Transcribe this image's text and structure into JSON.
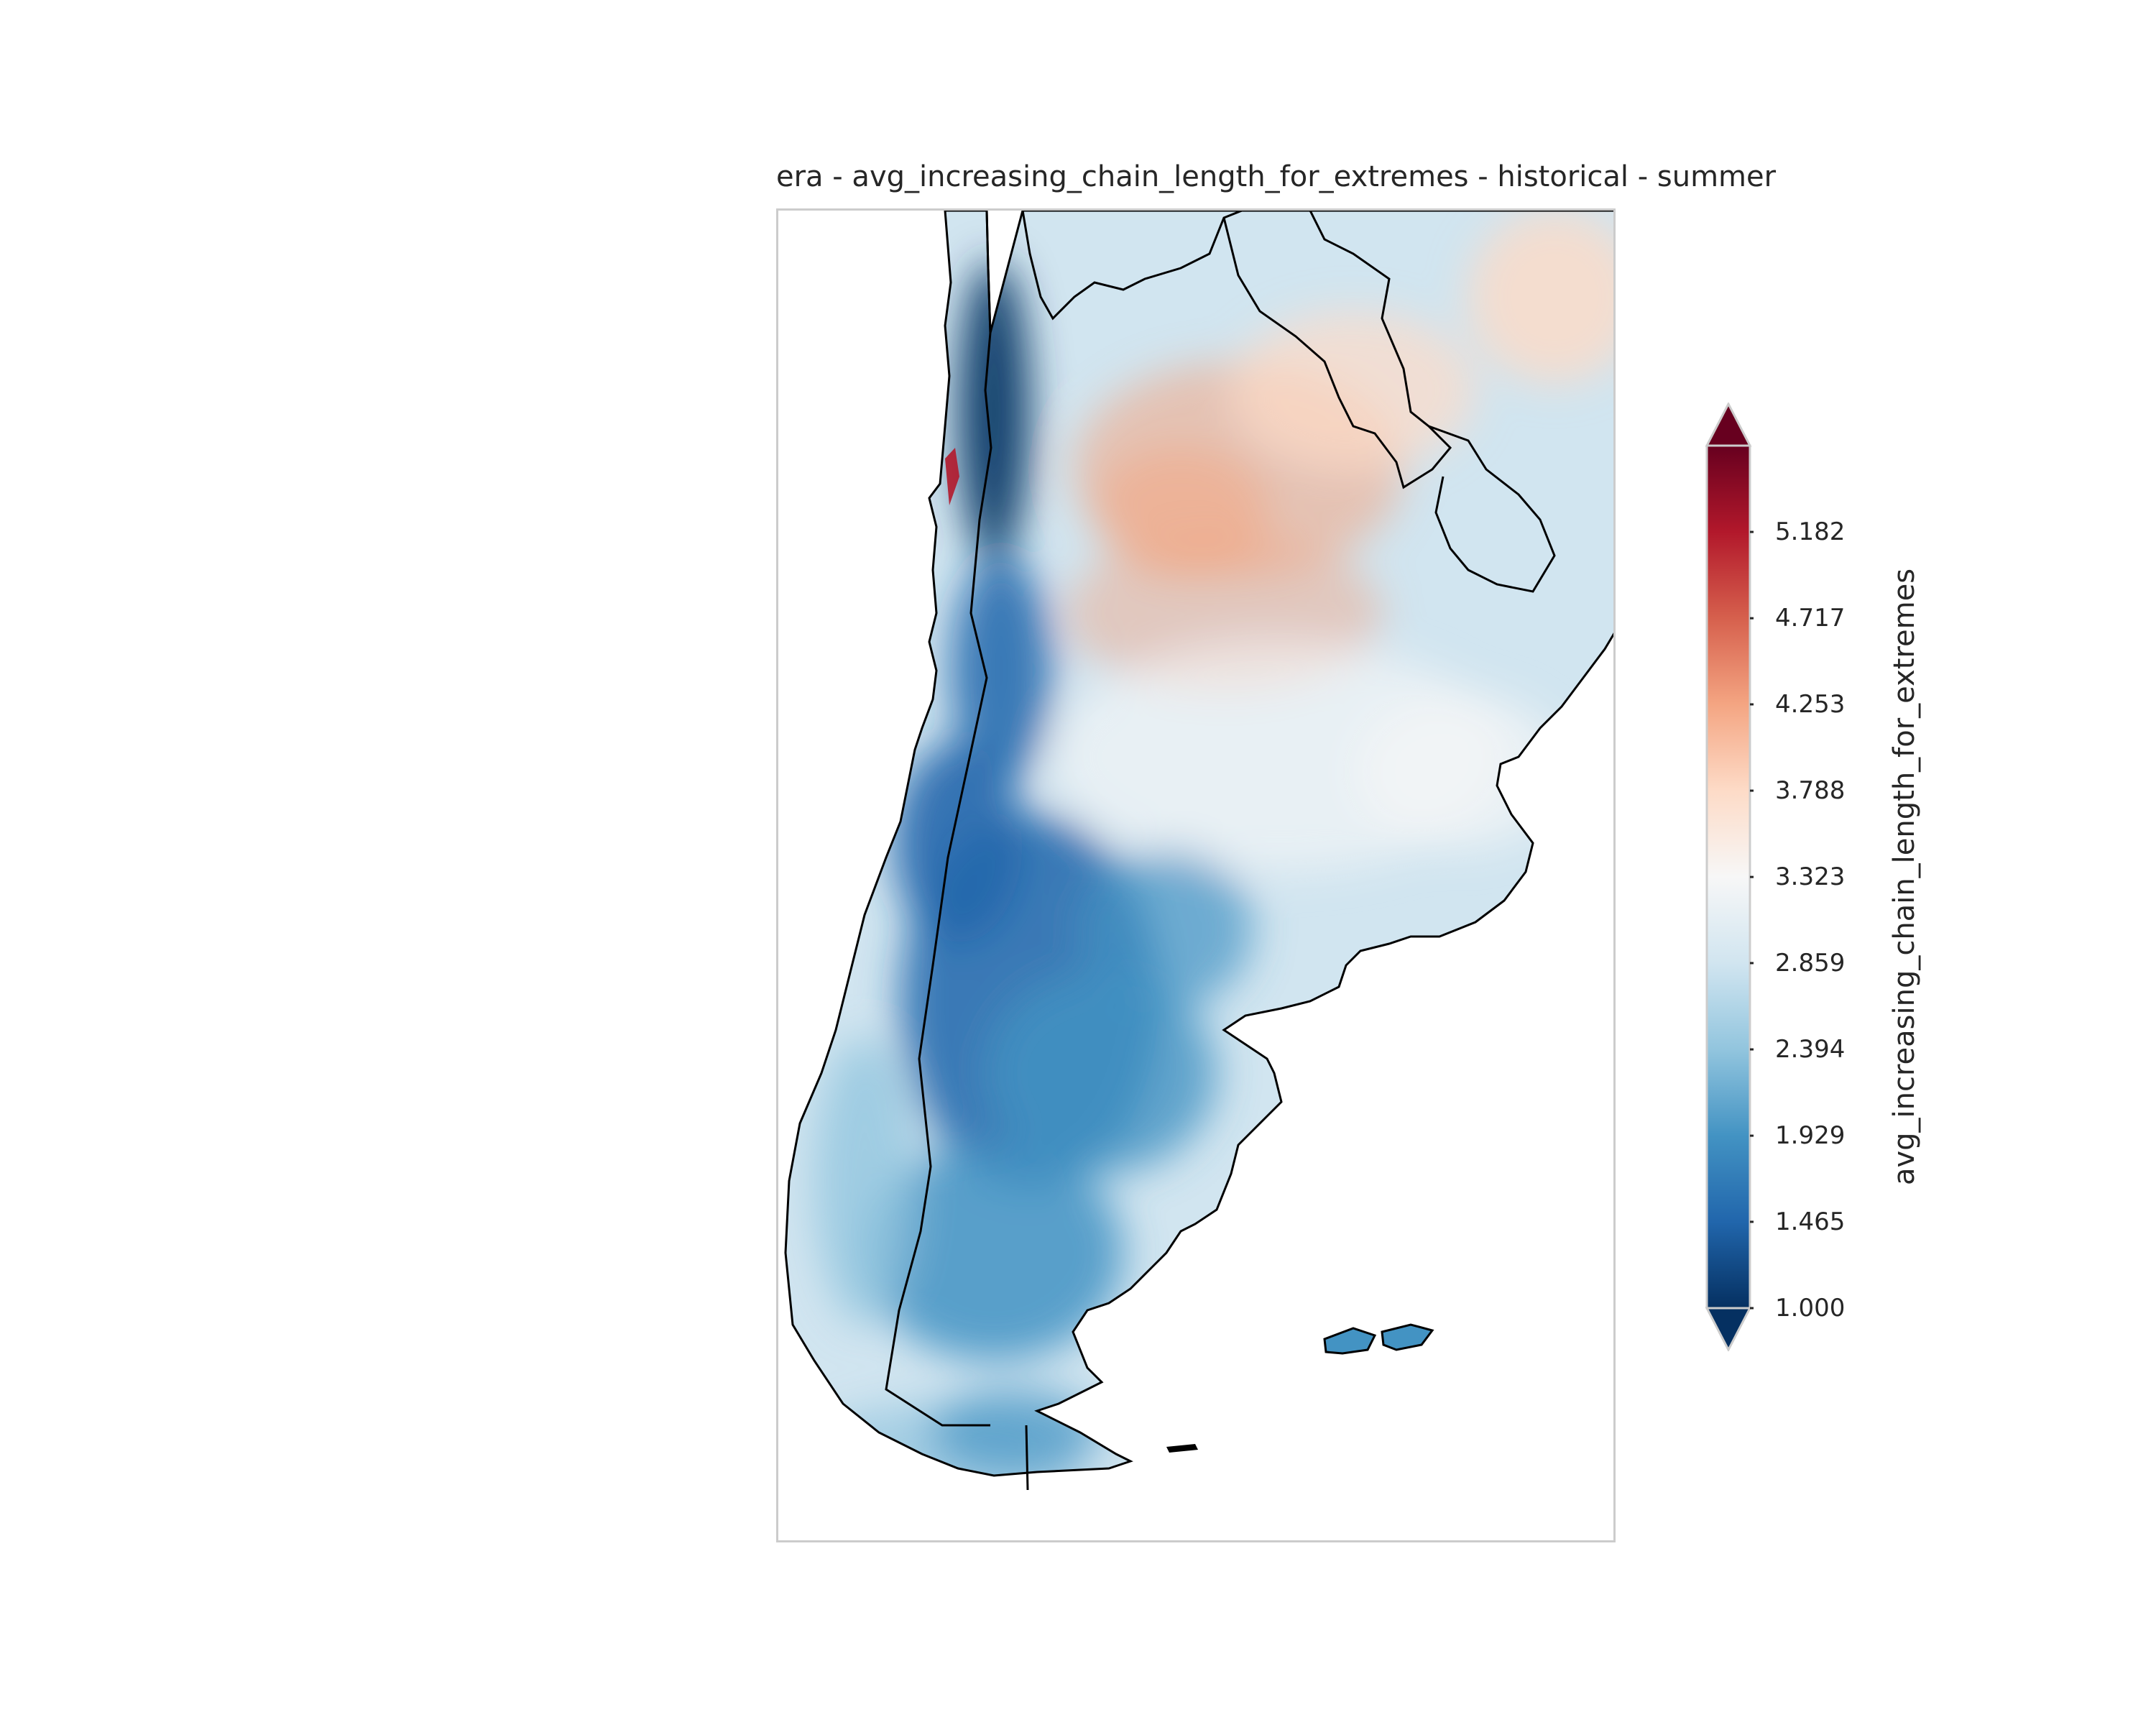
{
  "title": "era - avg_increasing_chain_length_for_extremes - historical - summer",
  "colorbar": {
    "label": "avg_increasing_chain_length_for_extremes",
    "min": 1.0,
    "max": 5.647,
    "extend": "both",
    "colormap": "RdBu_r",
    "colors": [
      "#053061",
      "#2166ac",
      "#4393c3",
      "#92c5de",
      "#d1e5f0",
      "#f7f7f7",
      "#fddbc7",
      "#f4a582",
      "#d6604d",
      "#b2182b",
      "#67001f"
    ],
    "ticks": [
      {
        "value": 1.0,
        "label": "1.000"
      },
      {
        "value": 1.465,
        "label": "1.465"
      },
      {
        "value": 1.929,
        "label": "1.929"
      },
      {
        "value": 2.394,
        "label": "2.394"
      },
      {
        "value": 2.859,
        "label": "2.859"
      },
      {
        "value": 3.323,
        "label": "3.323"
      },
      {
        "value": 3.788,
        "label": "3.788"
      },
      {
        "value": 4.253,
        "label": "4.253"
      },
      {
        "value": 4.717,
        "label": "4.717"
      },
      {
        "value": 5.182,
        "label": "5.182"
      }
    ]
  }
}
